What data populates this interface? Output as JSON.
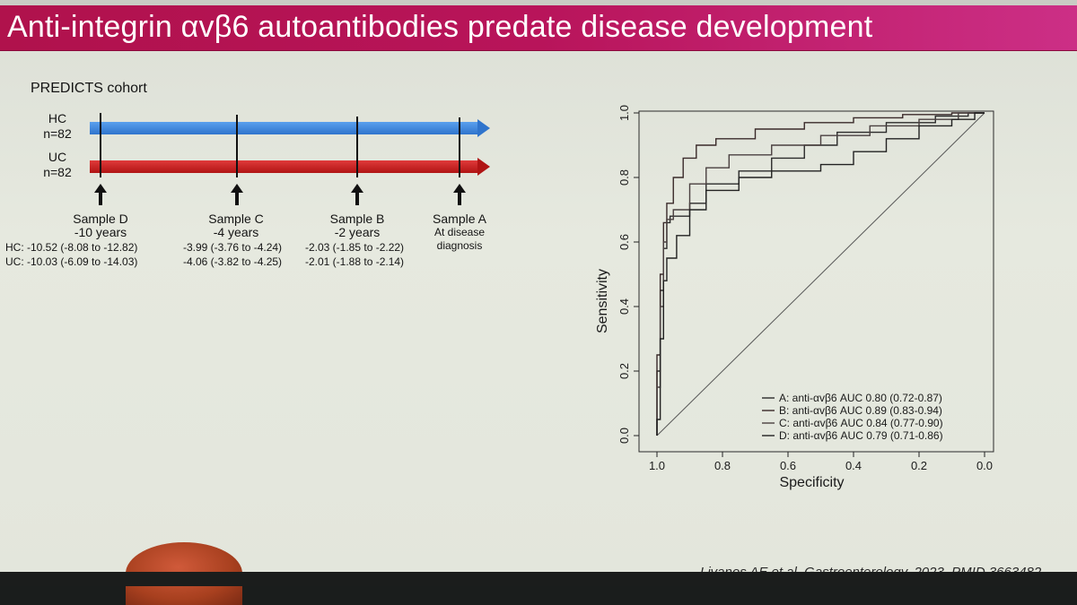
{
  "title": "Anti-integrin αvβ6 autoantibodies predate disease development",
  "cohort_label": "PREDICTS cohort",
  "groups": [
    {
      "name": "HC",
      "n": "n=82",
      "color": "#2f7bd6"
    },
    {
      "name": "UC",
      "n": "n=82",
      "color": "#c81c1c"
    }
  ],
  "samples": [
    {
      "name": "Sample D",
      "time": "-10 years",
      "hc": "HC: -10.52 (-8.08 to -12.82)",
      "uc": "UC: -10.03 (-6.09 to -14.03)"
    },
    {
      "name": "Sample C",
      "time": "-4 years",
      "hc": "-3.99 (-3.76 to -4.24)",
      "uc": "-4.06 (-3.82 to -4.25)"
    },
    {
      "name": "Sample B",
      "time": "-2 years",
      "hc": "-2.03 (-1.85 to -2.22)",
      "uc": "-2.01 (-1.88 to -2.14)"
    },
    {
      "name": "Sample A",
      "time": "At disease",
      "time2": "diagnosis"
    }
  ],
  "chart_data": {
    "type": "line",
    "title": "",
    "xlabel": "Specificity",
    "ylabel": "Sensitivity",
    "xlim": [
      1.0,
      0.0
    ],
    "ylim": [
      0.0,
      1.0
    ],
    "x_ticks": [
      "1.0",
      "0.8",
      "0.6",
      "0.4",
      "0.2",
      "0.0"
    ],
    "y_ticks": [
      "0.0",
      "0.2",
      "0.4",
      "0.6",
      "0.8",
      "1.0"
    ],
    "legend_position": "bottom-right",
    "reference_line": "diagonal",
    "series": [
      {
        "name": "A: anti-αvβ6 AUC 0.80 (0.72-0.87)",
        "points": [
          [
            1.0,
            0.0
          ],
          [
            1.0,
            0.12
          ],
          [
            0.99,
            0.2
          ],
          [
            0.98,
            0.45
          ],
          [
            0.97,
            0.58
          ],
          [
            0.96,
            0.66
          ],
          [
            0.9,
            0.68
          ],
          [
            0.85,
            0.72
          ],
          [
            0.75,
            0.78
          ],
          [
            0.65,
            0.82
          ],
          [
            0.55,
            0.86
          ],
          [
            0.45,
            0.9
          ],
          [
            0.3,
            0.94
          ],
          [
            0.15,
            0.97
          ],
          [
            0.05,
            0.99
          ],
          [
            0.0,
            1.0
          ]
        ]
      },
      {
        "name": "B: anti-αvβ6 AUC 0.89 (0.83-0.94)",
        "points": [
          [
            1.0,
            0.0
          ],
          [
            1.0,
            0.05
          ],
          [
            0.99,
            0.25
          ],
          [
            0.98,
            0.5
          ],
          [
            0.97,
            0.66
          ],
          [
            0.95,
            0.72
          ],
          [
            0.92,
            0.8
          ],
          [
            0.88,
            0.86
          ],
          [
            0.82,
            0.9
          ],
          [
            0.7,
            0.92
          ],
          [
            0.55,
            0.95
          ],
          [
            0.4,
            0.97
          ],
          [
            0.25,
            0.985
          ],
          [
            0.1,
            0.995
          ],
          [
            0.0,
            1.0
          ]
        ]
      },
      {
        "name": "C: anti-αvβ6 AUC 0.84 (0.77-0.90)",
        "points": [
          [
            1.0,
            0.0
          ],
          [
            0.99,
            0.15
          ],
          [
            0.98,
            0.4
          ],
          [
            0.97,
            0.6
          ],
          [
            0.95,
            0.67
          ],
          [
            0.9,
            0.7
          ],
          [
            0.85,
            0.78
          ],
          [
            0.78,
            0.83
          ],
          [
            0.65,
            0.87
          ],
          [
            0.5,
            0.9
          ],
          [
            0.35,
            0.93
          ],
          [
            0.2,
            0.96
          ],
          [
            0.08,
            0.98
          ],
          [
            0.0,
            1.0
          ]
        ]
      },
      {
        "name": "D: anti-αvβ6 AUC 0.79 (0.71-0.86)",
        "points": [
          [
            1.0,
            0.0
          ],
          [
            0.99,
            0.05
          ],
          [
            0.98,
            0.3
          ],
          [
            0.97,
            0.48
          ],
          [
            0.94,
            0.55
          ],
          [
            0.9,
            0.62
          ],
          [
            0.85,
            0.7
          ],
          [
            0.75,
            0.76
          ],
          [
            0.65,
            0.8
          ],
          [
            0.5,
            0.82
          ],
          [
            0.4,
            0.84
          ],
          [
            0.3,
            0.88
          ],
          [
            0.2,
            0.92
          ],
          [
            0.1,
            0.96
          ],
          [
            0.03,
            0.98
          ],
          [
            0.0,
            1.0
          ]
        ]
      }
    ]
  },
  "citation": "Livanos AE et al, Gastroenterology, 2023. PMID 3663482"
}
